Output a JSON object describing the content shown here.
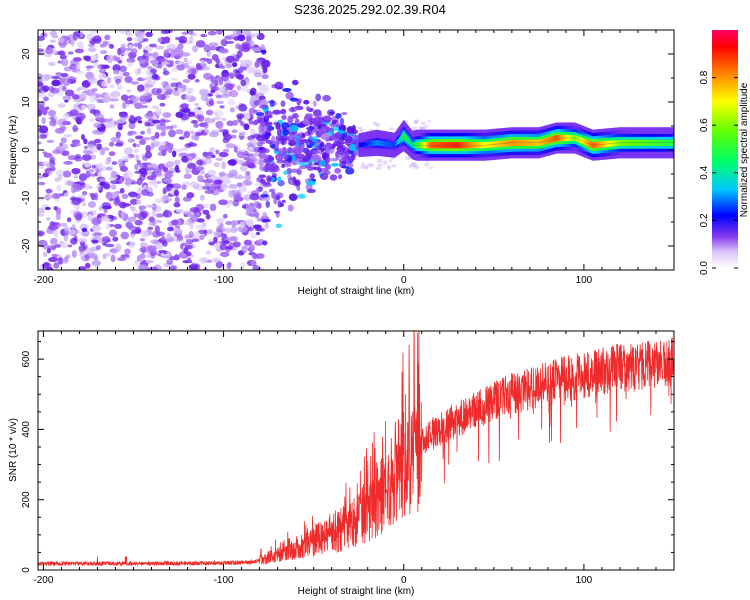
{
  "figure_title": "S236.2025.292.02.39.R04",
  "chart_data": [
    {
      "type": "heatmap",
      "title": "S236.2025.292.02.39.R04",
      "xlabel": "Height of straight line (km)",
      "ylabel": "Frequency (Hz)",
      "xlim": [
        -203,
        150
      ],
      "ylim": [
        -25,
        25
      ],
      "x_ticks": [
        -200,
        -100,
        0,
        100
      ],
      "x_tick_labels": [
        "-200",
        "-100",
        "0",
        "100"
      ],
      "y_ticks": [
        -20,
        -10,
        0,
        10,
        20
      ],
      "y_tick_labels": [
        "-20",
        "-10",
        "0",
        "10",
        "20"
      ],
      "noise_region_km": [
        -203,
        -80
      ],
      "transition_region_km": [
        -80,
        -25
      ],
      "signal_band_hz": [
        0,
        3
      ],
      "signal_ridge": {
        "x": [
          -25,
          -15,
          -5,
          0,
          5,
          15,
          30,
          45,
          60,
          75,
          85,
          95,
          105,
          120,
          135,
          150
        ],
        "y_hz": [
          1.0,
          1.5,
          1.0,
          3.0,
          1.0,
          1.0,
          1.0,
          1.0,
          1.5,
          1.5,
          2.5,
          2.5,
          1.0,
          1.5,
          1.5,
          1.5
        ],
        "amplitude": [
          0.2,
          0.3,
          0.25,
          0.5,
          0.4,
          0.85,
          0.9,
          0.7,
          0.8,
          0.75,
          0.85,
          0.6,
          0.85,
          0.6,
          0.55,
          0.5
        ]
      },
      "colorbar": {
        "label": "Normalized spectral amplitude",
        "range": [
          0,
          1
        ],
        "ticks": [
          0.0,
          0.2,
          0.4,
          0.6,
          0.8
        ],
        "tick_labels": [
          "0.0",
          "0.2",
          "0.4",
          "0.6",
          "0.8"
        ]
      }
    },
    {
      "type": "line",
      "title": "",
      "xlabel": "Height of straight line (km)",
      "ylabel": "SNR (10 * v/v)",
      "xlim": [
        -203,
        150
      ],
      "ylim": [
        0,
        680
      ],
      "x_ticks": [
        -200,
        -100,
        0,
        100
      ],
      "x_tick_labels": [
        "-200",
        "-100",
        "0",
        "100"
      ],
      "y_ticks": [
        0,
        200,
        400,
        600
      ],
      "y_tick_labels": [
        "0",
        "200",
        "400",
        "600"
      ],
      "series": [
        {
          "name": "SNR",
          "color": "#ee2a2a",
          "envelope_x": [
            -203,
            -150,
            -100,
            -85,
            -75,
            -60,
            -40,
            -25,
            -15,
            -5,
            0,
            5,
            10,
            20,
            30,
            40,
            50,
            60,
            70,
            80,
            90,
            100,
            110,
            120,
            130,
            140,
            150
          ],
          "envelope_y": [
            18,
            18,
            20,
            22,
            35,
            65,
            100,
            145,
            200,
            260,
            300,
            340,
            370,
            400,
            430,
            455,
            480,
            500,
            515,
            530,
            545,
            555,
            565,
            575,
            582,
            588,
            592
          ]
        }
      ]
    }
  ],
  "colors": {
    "signal_line": "#ee2a2a",
    "noise_purple": "#6a1fe8",
    "noise_light": "#cdb3f5"
  }
}
